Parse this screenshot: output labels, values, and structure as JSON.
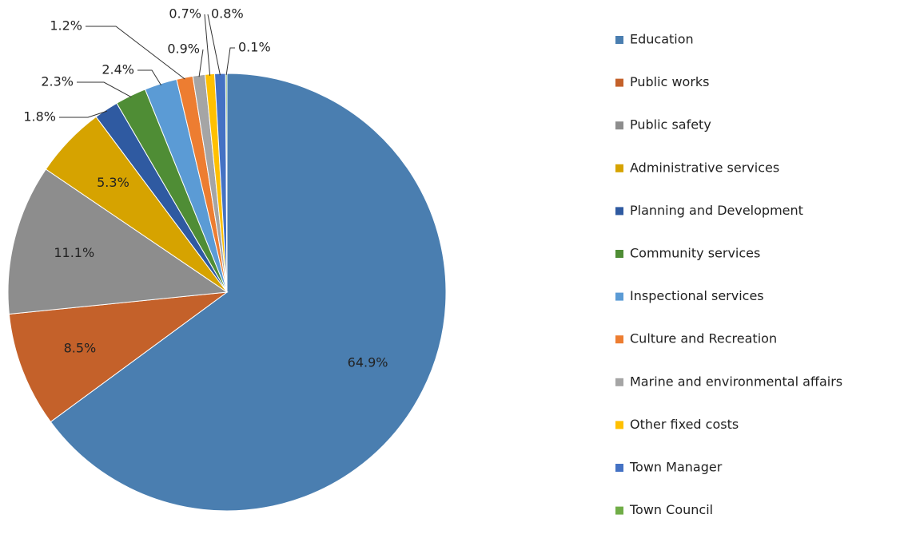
{
  "chart_data": {
    "type": "pie",
    "categories": [
      "Education",
      "Public works",
      "Public safety",
      "Administrative services",
      "Planning and Development",
      "Community services",
      "Inspectional services",
      "Culture and Recreation",
      "Marine and environmental affairs",
      "Other fixed costs",
      "Town Manager",
      "Town Council"
    ],
    "values": [
      64.9,
      8.5,
      11.1,
      5.3,
      1.8,
      2.3,
      2.4,
      1.2,
      0.9,
      0.7,
      0.8,
      0.1
    ],
    "value_labels": [
      "64.9%",
      "8.5%",
      "11.1%",
      "5.3%",
      "1.8%",
      "2.3%",
      "2.4%",
      "1.2%",
      "0.9%",
      "0.7%",
      "0.8%",
      "0.1%"
    ],
    "colors": [
      "#4a7eb0",
      "#c4612a",
      "#8d8d8d",
      "#d6a300",
      "#2f5aa1",
      "#4f8d35",
      "#5b9bd5",
      "#ed7d31",
      "#a5a5a5",
      "#ffc000",
      "#4472c4",
      "#70ad47"
    ],
    "legend": "right"
  }
}
